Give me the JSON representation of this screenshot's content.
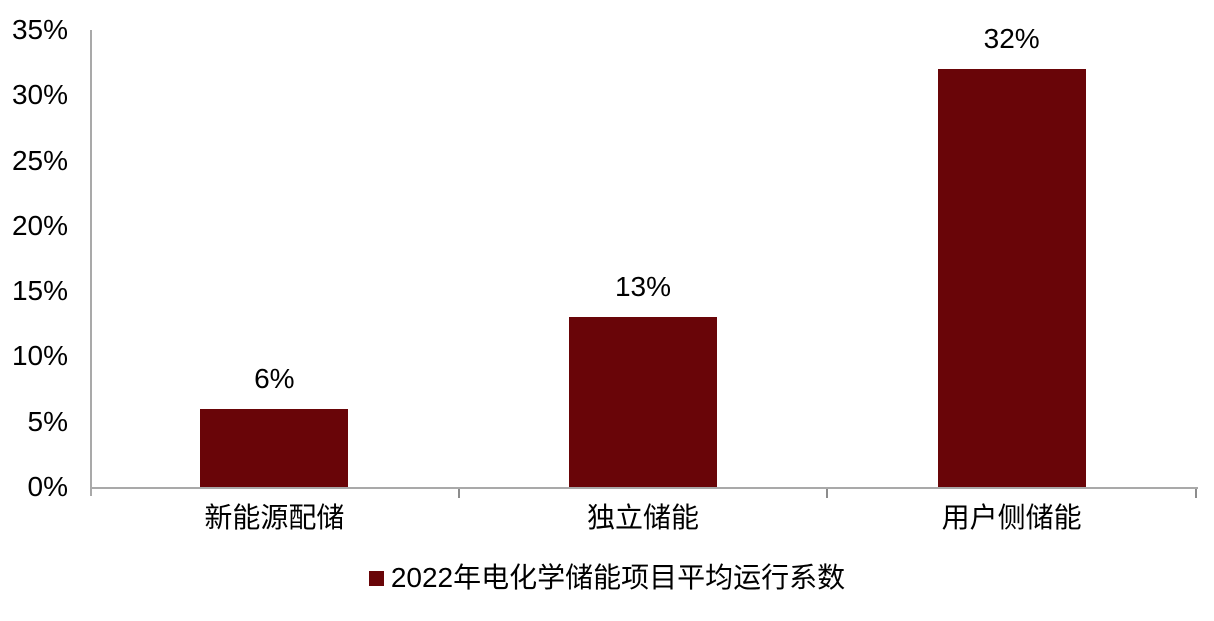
{
  "chart_data": {
    "type": "bar",
    "title": "",
    "categories": [
      "新能源配储",
      "独立储能",
      "用户侧储能"
    ],
    "values": [
      6,
      13,
      32
    ],
    "value_labels": [
      "6%",
      "13%",
      "32%"
    ],
    "legend": "2022年电化学储能项目平均运行系数",
    "ylim": [
      0,
      35
    ],
    "ytick_step": 5,
    "ytick_labels": [
      "0%",
      "5%",
      "10%",
      "15%",
      "20%",
      "25%",
      "30%",
      "35%"
    ],
    "grid": false,
    "legend_position": "bottom",
    "bar_color": "#690508",
    "axis_color": "#a9a9a9",
    "tick_color": "#8c8c8c",
    "text_color": "#000000",
    "background_color": "#ffffff"
  }
}
